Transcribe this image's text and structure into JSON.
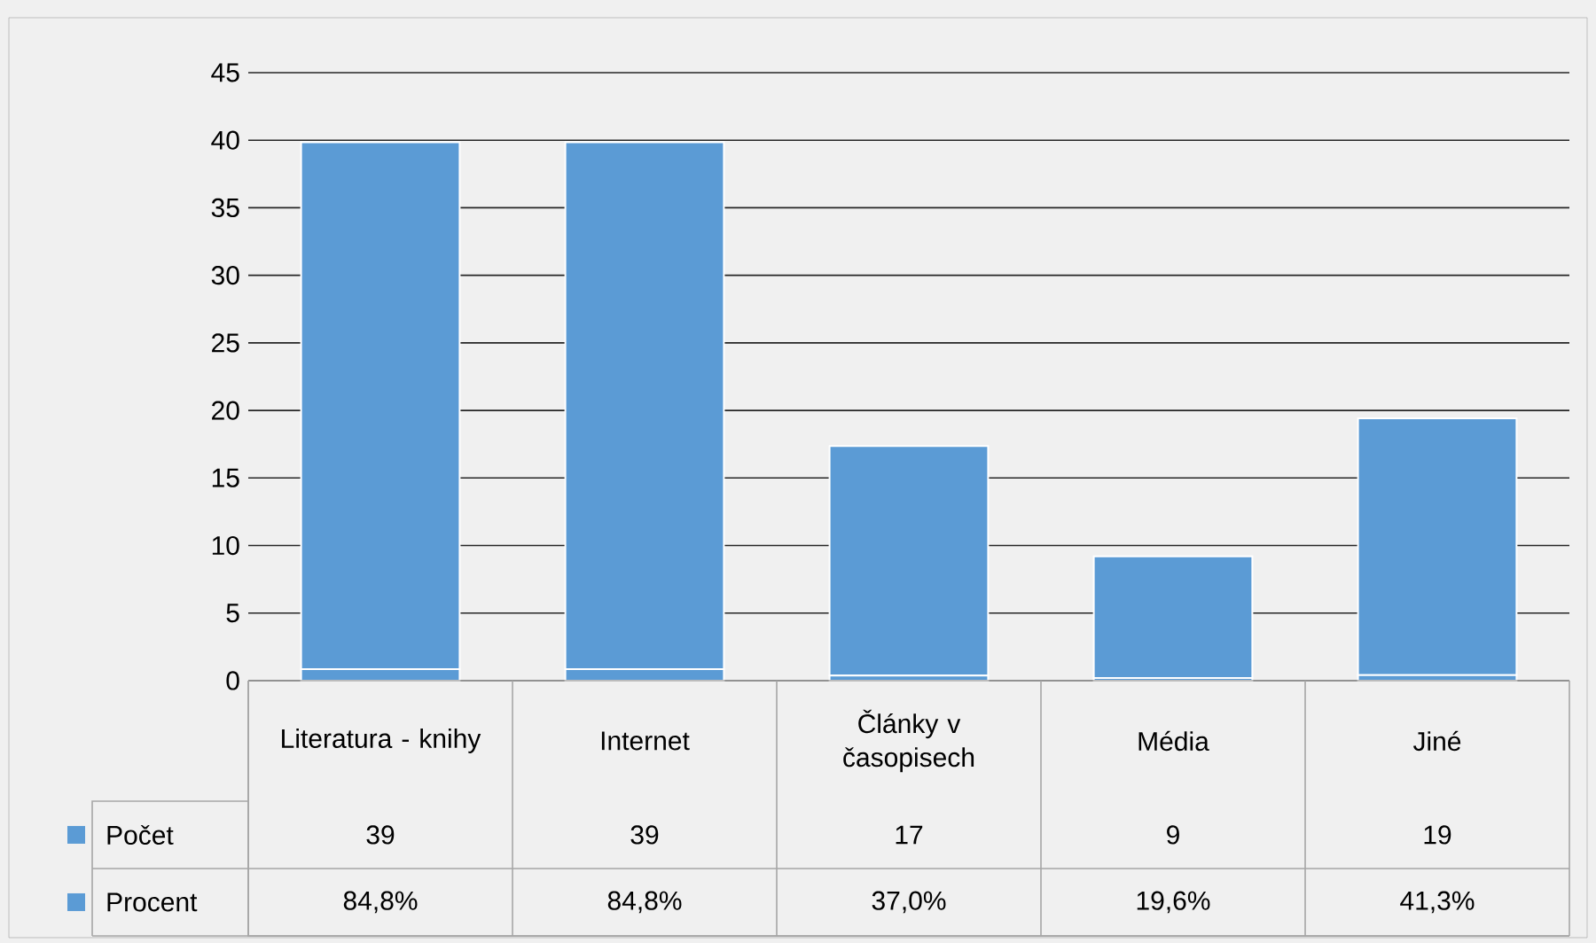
{
  "chart_data": {
    "type": "bar",
    "stacked": true,
    "categories": [
      "Literatura - knihy",
      "Internet",
      "Články v časopisech",
      "Média",
      "Jiné"
    ],
    "series": [
      {
        "name": "Procent",
        "color": "#5b9bd5",
        "values": [
          0.848,
          0.848,
          0.37,
          0.196,
          0.413
        ],
        "value_labels": [
          "84,8%",
          "84,8%",
          "37,0%",
          "19,6%",
          "41,3%"
        ]
      },
      {
        "name": "Počet",
        "color": "#5b9bd5",
        "values": [
          39,
          39,
          17,
          9,
          19
        ],
        "value_labels": [
          "39",
          "39",
          "17",
          "9",
          "19"
        ]
      }
    ],
    "ylim": [
      0,
      45
    ],
    "yticks": [
      0,
      5,
      10,
      15,
      20,
      25,
      30,
      35,
      40,
      45
    ],
    "grid": "y",
    "legend": "bottom left"
  }
}
